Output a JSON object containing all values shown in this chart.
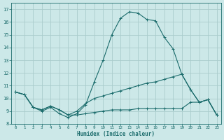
{
  "title": "",
  "xlabel": "Humidex (Indice chaleur)",
  "xlim": [
    -0.5,
    23.5
  ],
  "ylim": [
    8,
    17.5
  ],
  "yticks": [
    8,
    9,
    10,
    11,
    12,
    13,
    14,
    15,
    16,
    17
  ],
  "xticks": [
    0,
    1,
    2,
    3,
    4,
    5,
    6,
    7,
    8,
    9,
    10,
    11,
    12,
    13,
    14,
    15,
    16,
    17,
    18,
    19,
    20,
    21,
    22,
    23
  ],
  "bg_color": "#cce8e8",
  "grid_color": "#aacccc",
  "line_color": "#1a6b6b",
  "line1_x": [
    0,
    1,
    2,
    3,
    4,
    5,
    6,
    7,
    8,
    9,
    10,
    11,
    12,
    13,
    14,
    15,
    16,
    17,
    18,
    19,
    20,
    21,
    22,
    23
  ],
  "line1_y": [
    10.5,
    10.3,
    9.3,
    9.0,
    9.3,
    8.8,
    8.5,
    8.8,
    9.5,
    11.3,
    13.0,
    15.0,
    16.3,
    16.8,
    16.7,
    16.2,
    16.1,
    14.8,
    13.9,
    11.9,
    10.7,
    9.7,
    9.9,
    8.7
  ],
  "line2_x": [
    0,
    1,
    2,
    3,
    4,
    5,
    6,
    7,
    8,
    9,
    10,
    11,
    12,
    13,
    14,
    15,
    16,
    17,
    18,
    19,
    20,
    21,
    22,
    23
  ],
  "line2_y": [
    10.5,
    10.3,
    9.3,
    9.1,
    9.4,
    9.1,
    8.7,
    9.0,
    9.6,
    10.0,
    10.2,
    10.4,
    10.6,
    10.8,
    11.0,
    11.2,
    11.3,
    11.5,
    11.7,
    11.9,
    10.7,
    9.7,
    9.9,
    8.7
  ],
  "line3_x": [
    0,
    1,
    2,
    3,
    4,
    5,
    6,
    7,
    8,
    9,
    10,
    11,
    12,
    13,
    14,
    15,
    16,
    17,
    18,
    19,
    20,
    21,
    22,
    23
  ],
  "line3_y": [
    10.5,
    10.3,
    9.3,
    9.1,
    9.4,
    9.1,
    8.7,
    8.7,
    8.8,
    8.9,
    9.0,
    9.1,
    9.1,
    9.1,
    9.2,
    9.2,
    9.2,
    9.2,
    9.2,
    9.2,
    9.7,
    9.7,
    9.9,
    8.7
  ]
}
